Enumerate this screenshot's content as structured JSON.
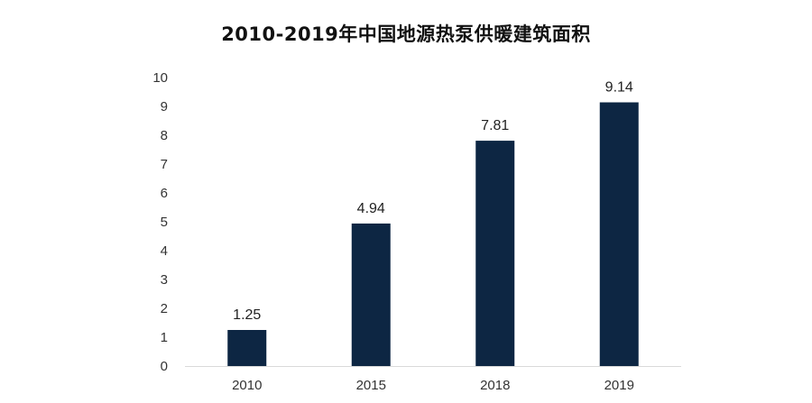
{
  "chart_data": {
    "type": "bar",
    "title": "2010-2019年中国地源热泵供暖建筑面积",
    "categories": [
      "2010",
      "2015",
      "2018",
      "2019"
    ],
    "values": [
      1.25,
      4.94,
      7.81,
      9.14
    ],
    "data_labels": [
      "1.25",
      "4.94",
      "7.81",
      "9.14"
    ],
    "ylim": [
      0,
      10
    ],
    "yticks": [
      "0",
      "1",
      "2",
      "3",
      "4",
      "5",
      "6",
      "7",
      "8",
      "9",
      "10"
    ],
    "xlabel": "",
    "ylabel": "",
    "grid": false,
    "legend": "none",
    "bar_color": "#0d2643",
    "axis_color": "#d9d9d9"
  }
}
